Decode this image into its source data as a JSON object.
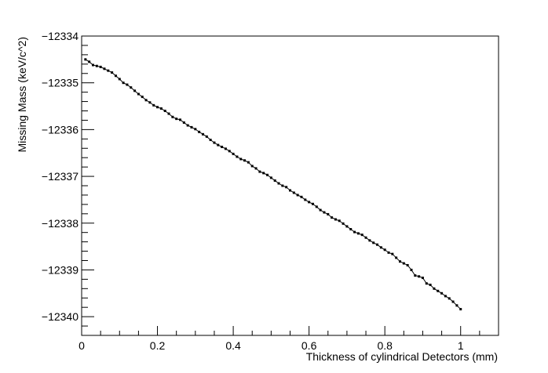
{
  "chart_data": {
    "type": "line",
    "title": "",
    "xlabel": "Thickness of cylindrical Detectors (mm)",
    "ylabel": "Missing Mass (keV/c^2)",
    "xlim": [
      0,
      1.1
    ],
    "ylim": [
      -12340.4,
      -12334
    ],
    "x_ticks": [
      0,
      0.2,
      0.4,
      0.6,
      0.8,
      1
    ],
    "x_tick_labels": [
      "0",
      "0.2",
      "0.4",
      "0.6",
      "0.8",
      "1"
    ],
    "y_ticks": [
      -12334,
      -12335,
      -12336,
      -12337,
      -12338,
      -12339,
      -12340
    ],
    "y_tick_labels": [
      "−12334",
      "−12335",
      "−12336",
      "−12337",
      "−12338",
      "−12339",
      "−12340"
    ],
    "grid": false,
    "series": [
      {
        "marker": "square",
        "color": "#000000",
        "x": [
          0.01,
          0.02,
          0.03,
          0.04,
          0.05,
          0.06,
          0.07,
          0.08,
          0.09,
          0.1,
          0.11,
          0.12,
          0.13,
          0.14,
          0.15,
          0.16,
          0.17,
          0.18,
          0.19,
          0.2,
          0.21,
          0.22,
          0.23,
          0.24,
          0.25,
          0.26,
          0.27,
          0.28,
          0.29,
          0.3,
          0.31,
          0.32,
          0.33,
          0.34,
          0.35,
          0.36,
          0.37,
          0.38,
          0.39,
          0.4,
          0.41,
          0.42,
          0.43,
          0.44,
          0.45,
          0.46,
          0.47,
          0.48,
          0.49,
          0.5,
          0.51,
          0.52,
          0.53,
          0.54,
          0.55,
          0.56,
          0.57,
          0.58,
          0.59,
          0.6,
          0.61,
          0.62,
          0.63,
          0.64,
          0.65,
          0.66,
          0.67,
          0.68,
          0.69,
          0.7,
          0.71,
          0.72,
          0.73,
          0.74,
          0.75,
          0.76,
          0.77,
          0.78,
          0.79,
          0.8,
          0.81,
          0.82,
          0.83,
          0.84,
          0.85,
          0.86,
          0.87,
          0.88,
          0.89,
          0.9,
          0.91,
          0.92,
          0.93,
          0.94,
          0.95,
          0.96,
          0.97,
          0.98,
          0.99,
          1.0
        ],
        "y": [
          -12334.5,
          -12334.55,
          -12334.62,
          -12334.64,
          -12334.66,
          -12334.7,
          -12334.74,
          -12334.78,
          -12334.85,
          -12334.92,
          -12335.0,
          -12335.04,
          -12335.1,
          -12335.17,
          -12335.24,
          -12335.3,
          -12335.37,
          -12335.42,
          -12335.48,
          -12335.52,
          -12335.55,
          -12335.6,
          -12335.66,
          -12335.73,
          -12335.77,
          -12335.79,
          -12335.85,
          -12335.91,
          -12335.95,
          -12335.99,
          -12336.05,
          -12336.1,
          -12336.15,
          -12336.22,
          -12336.28,
          -12336.33,
          -12336.37,
          -12336.41,
          -12336.46,
          -12336.52,
          -12336.58,
          -12336.63,
          -12336.66,
          -12336.7,
          -12336.78,
          -12336.83,
          -12336.9,
          -12336.93,
          -12336.97,
          -12337.03,
          -12337.09,
          -12337.15,
          -12337.2,
          -12337.23,
          -12337.3,
          -12337.35,
          -12337.4,
          -12337.44,
          -12337.5,
          -12337.55,
          -12337.59,
          -12337.65,
          -12337.72,
          -12337.77,
          -12337.81,
          -12337.88,
          -12337.92,
          -12337.95,
          -12338.01,
          -12338.07,
          -12338.13,
          -12338.19,
          -12338.22,
          -12338.25,
          -12338.31,
          -12338.37,
          -12338.42,
          -12338.46,
          -12338.52,
          -12338.57,
          -12338.63,
          -12338.66,
          -12338.74,
          -12338.82,
          -12338.86,
          -12338.9,
          -12339.0,
          -12339.12,
          -12339.14,
          -12339.17,
          -12339.29,
          -12339.32,
          -12339.4,
          -12339.45,
          -12339.5,
          -12339.56,
          -12339.61,
          -12339.68,
          -12339.76,
          -12339.84
        ]
      }
    ]
  }
}
